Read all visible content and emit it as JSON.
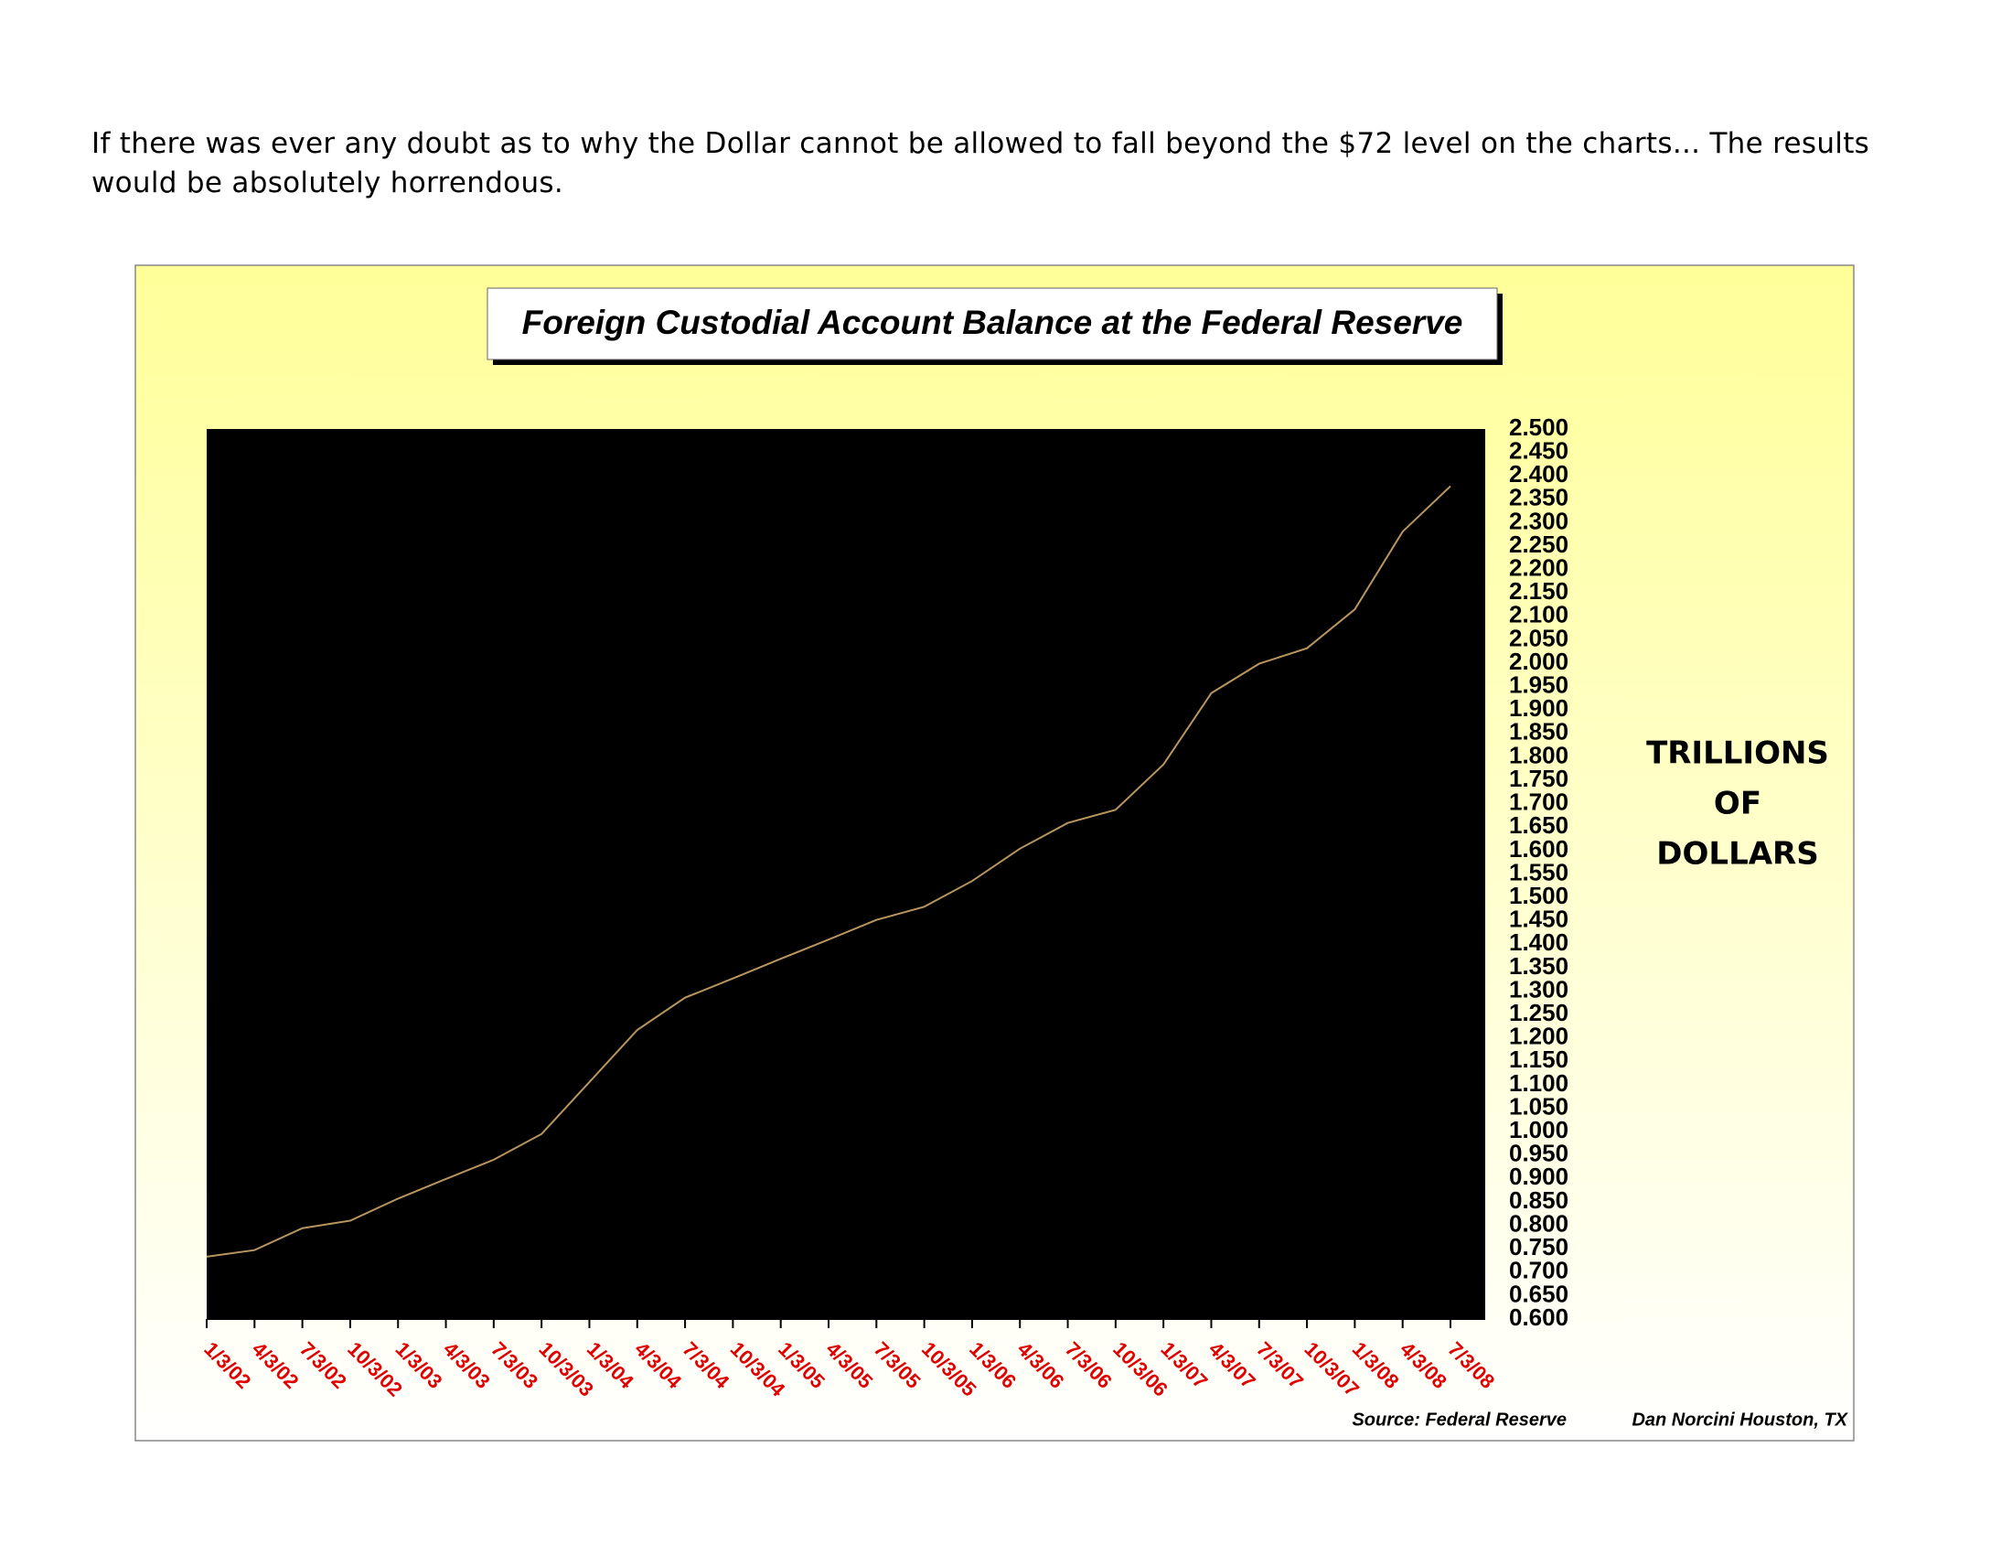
{
  "text": "If there was ever any doubt as to why the Dollar cannot be allowed to fall beyond the $72 level on the charts... The results would be absolutely horrendous.",
  "chart_data": {
    "type": "line",
    "title": "Foreign Custodial Account Balance at the Federal Reserve",
    "y_label": [
      "TRILLIONS",
      "OF",
      "DOLLARS"
    ],
    "source": "Source: Federal Reserve",
    "credit": "Dan Norcini  Houston, TX",
    "color": "#b8955e",
    "categories": [
      "1/3/02",
      "4/3/02",
      "7/3/02",
      "10/3/02",
      "1/3/03",
      "4/3/03",
      "7/3/03",
      "10/3/03",
      "1/3/04",
      "4/3/04",
      "7/3/04",
      "10/3/04",
      "1/3/05",
      "4/3/05",
      "7/3/05",
      "10/3/05",
      "1/3/06",
      "4/3/06",
      "7/3/06",
      "10/3/06",
      "1/3/07",
      "4/3/07",
      "7/3/07",
      "10/3/07",
      "1/3/08",
      "4/3/08",
      "7/3/08"
    ],
    "values": [
      0.733,
      0.747,
      0.794,
      0.81,
      0.857,
      0.899,
      0.94,
      0.995,
      1.106,
      1.217,
      1.286,
      1.327,
      1.369,
      1.41,
      1.452,
      1.48,
      1.535,
      1.604,
      1.659,
      1.687,
      1.784,
      1.936,
      1.999,
      2.032,
      2.115,
      2.281,
      2.378
    ],
    "ylim": [
      0.6,
      2.5
    ],
    "yticks": [
      {
        "value": 0.6,
        "label": "0.600"
      },
      {
        "value": 0.65,
        "label": "0.650"
      },
      {
        "value": 0.7,
        "label": "0.700"
      },
      {
        "value": 0.75,
        "label": "0.750"
      },
      {
        "value": 0.8,
        "label": "0.800"
      },
      {
        "value": 0.85,
        "label": "0.850"
      },
      {
        "value": 0.9,
        "label": "0.900"
      },
      {
        "value": 0.95,
        "label": "0.950"
      },
      {
        "value": 1.0,
        "label": "1.000"
      },
      {
        "value": 1.05,
        "label": "1.050"
      },
      {
        "value": 1.1,
        "label": "1.100"
      },
      {
        "value": 1.15,
        "label": "1.150"
      },
      {
        "value": 1.2,
        "label": "1.200"
      },
      {
        "value": 1.25,
        "label": "1.250"
      },
      {
        "value": 1.3,
        "label": "1.300"
      },
      {
        "value": 1.35,
        "label": "1.350"
      },
      {
        "value": 1.4,
        "label": "1.400"
      },
      {
        "value": 1.45,
        "label": "1.450"
      },
      {
        "value": 1.5,
        "label": "1.500"
      },
      {
        "value": 1.55,
        "label": "1.550"
      },
      {
        "value": 1.6,
        "label": "1.600"
      },
      {
        "value": 1.65,
        "label": "1.650"
      },
      {
        "value": 1.7,
        "label": "1.700"
      },
      {
        "value": 1.75,
        "label": "1.750"
      },
      {
        "value": 1.8,
        "label": "1.800"
      },
      {
        "value": 1.85,
        "label": "1.850"
      },
      {
        "value": 1.9,
        "label": "1.900"
      },
      {
        "value": 1.95,
        "label": "1.950"
      },
      {
        "value": 2.0,
        "label": "2.000"
      },
      {
        "value": 2.05,
        "label": "2.050"
      },
      {
        "value": 2.1,
        "label": "2.100"
      },
      {
        "value": 2.15,
        "label": "2.150"
      },
      {
        "value": 2.2,
        "label": "2.200"
      },
      {
        "value": 2.25,
        "label": "2.250"
      },
      {
        "value": 2.3,
        "label": "2.300"
      },
      {
        "value": 2.35,
        "label": "2.350"
      },
      {
        "value": 2.4,
        "label": "2.400"
      },
      {
        "value": 2.45,
        "label": "2.450"
      },
      {
        "value": 2.5,
        "label": "2.500"
      }
    ]
  }
}
